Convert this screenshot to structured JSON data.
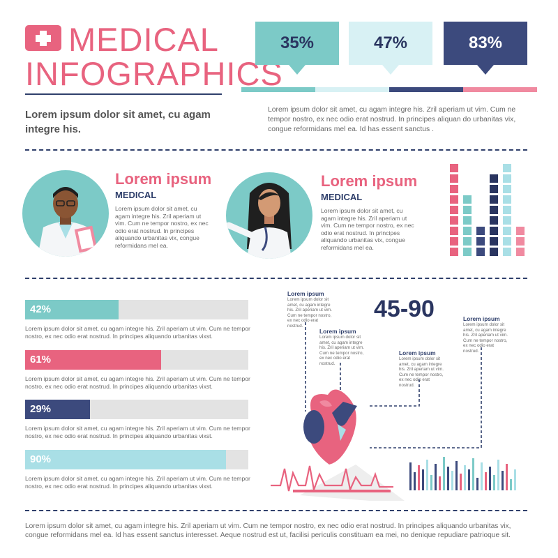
{
  "header": {
    "title_line1": "MEDICAL",
    "title_line2": "INFOGRAPHICS",
    "lead": "Lorem ipsum dolor sit amet, cu agam integre his.",
    "body": "Lorem ipsum dolor sit amet, cu agam integre his. Zril aperiam ut vim. Cum ne tempor nostro, ex nec odio erat nostrud. In principes aliquan do urbanitas vix, congue reformidans mel ea. Id has essent sanctus ."
  },
  "stats": [
    {
      "label": "35%",
      "value": 35,
      "color": "#7ccac7",
      "text_color": "#2a3560"
    },
    {
      "label": "47%",
      "value": 47,
      "color": "#d8f1f4",
      "text_color": "#2a3560"
    },
    {
      "label": "83%",
      "value": 83,
      "color": "#3c4a7d",
      "text_color": "#ffffff"
    }
  ],
  "stat_strip_colors": [
    "#7ccac7",
    "#d8f1f4",
    "#3c4a7d",
    "#f08aa0"
  ],
  "doctors": [
    {
      "name": "Lorem ipsum",
      "role": "MEDICAL",
      "text": "Lorem ipsum dolor sit amet, cu agam integre his. Zril aperiam ut vim. Cum ne tempor nostro, ex nec odio erat nostrud. In principes aliquando urbanitas vix, congue reformidans mel ea."
    },
    {
      "name": "Lorem ipsum",
      "role": "MEDICAL",
      "text": "Lorem ipsum dolor sit amet, cu agam integre his. Zril aperiam ut vim. Cum ne tempor nostro, ex nec odio erat nostrud. In principes aliquando urbanitas vix, congue reformidans mel ea."
    }
  ],
  "block_chart": {
    "columns": [
      {
        "color": "#e8637f",
        "blocks": 9
      },
      {
        "color": "#7ccac7",
        "blocks": 6
      },
      {
        "color": "#3c4a7d",
        "blocks": 3
      },
      {
        "color": "#2a3560",
        "blocks": 8
      },
      {
        "color": "#a9dfe6",
        "blocks": 9
      },
      {
        "color": "#f08aa0",
        "blocks": 3
      }
    ]
  },
  "progress": [
    {
      "label": "42%",
      "value": 42,
      "color": "#7ccac7",
      "text": "Lorem ipsum dolor sit amet, cu agam integre his. Zril aperiam ut vim. Cum ne tempor nostro, ex nec odio erat nostrud. In principes aliquando urbanitas vixst."
    },
    {
      "label": "61%",
      "value": 61,
      "color": "#e8637f",
      "text": "Lorem ipsum dolor sit amet, cu agam integre his. Zril aperiam ut vim. Cum ne tempor nostro, ex nec odio erat nostrud. In principes aliquando urbanitas vixst."
    },
    {
      "label": "29%",
      "value": 29,
      "color": "#3c4a7d",
      "text": "Lorem ipsum dolor sit amet, cu agam integre his. Zril aperiam ut vim. Cum ne tempor nostro, ex nec odio erat nostrud. In principes aliquando urbanitas vixst."
    },
    {
      "label": "90%",
      "value": 90,
      "color": "#a9dfe6",
      "text": "Lorem ipsum dolor sit amet, cu agam integre his. Zril aperiam ut vim. Cum ne tempor nostro, ex nec odio erat nostrud. In principes aliquando urbanitas vixst."
    }
  ],
  "heart_section": {
    "big_number": "45-90",
    "callouts": [
      {
        "title": "Lorem ipsum",
        "text": "Lorem ipsum dolor sit amet, cu agam integre his. Zril aperiam ut vim. Cum ne tempor nostro, ex nec odio erat nostrud."
      },
      {
        "title": "Lorem ipsum",
        "text": "Lorem ipsum dolor sit amet, cu agam integre his. Zril aperiam ut vim. Cum ne tempor nostro, ex nec odio erat nostrud."
      },
      {
        "title": "Lorem ipsum",
        "text": "Lorem ipsum dolor sit amet, cu agam integre his. Zril aperiam ut vim. Cum ne tempor nostro, ex nec odio erat nostrud."
      },
      {
        "title": "Lorem ipsum",
        "text": "Lorem ipsum dolor sit amet, cu agam integre his. Zril aperiam ut vim. Cum ne tempor nostro, ex nec odio erat nostrud."
      }
    ]
  },
  "footer": {
    "text": "Lorem ipsum dolor sit amet, cu agam integre his. Zril aperiam ut vim. Cum ne tempor nostro, ex nec odio erat nostrud. In principes aliquando urbanitas vix, congue reformidans mel ea. Id has essent sanctus interesset. Aeque nostrud est ut, facilisi periculis constituam ea mei, no denique repudiare patrioque sit."
  }
}
